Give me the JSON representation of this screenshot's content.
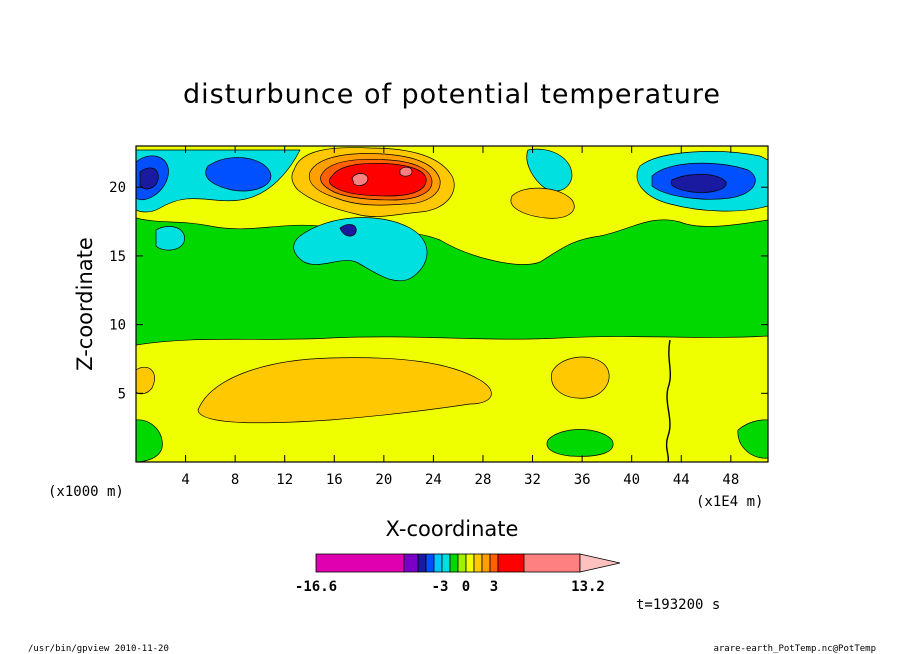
{
  "chart_data": {
    "type": "heatmap",
    "title": "disturbunce of potential temperature",
    "xlabel": "X-coordinate",
    "ylabel": "Z-coordinate",
    "x_unit": "(x1E4 m)",
    "y_unit": "(x1000 m)",
    "x_ticks": [
      "4",
      "8",
      "12",
      "16",
      "20",
      "24",
      "28",
      "32",
      "36",
      "40",
      "44",
      "48"
    ],
    "y_ticks": [
      "5",
      "10",
      "15",
      "20"
    ],
    "xlim": [
      0,
      51
    ],
    "ylim": [
      0,
      23
    ],
    "colorbar": {
      "labels": [
        "-16.6",
        "-3",
        "0",
        "3",
        "13.2"
      ],
      "min": -16.6,
      "max": 13.2,
      "colors": [
        "#e000b0",
        "#7a00c8",
        "#1a1aa0",
        "#0050ff",
        "#00c8ff",
        "#00e0e0",
        "#00d800",
        "#a0f000",
        "#f0ff00",
        "#ffc800",
        "#ffa000",
        "#ff6000",
        "#ff0000",
        "#ff8080",
        "#ffc0c0"
      ]
    },
    "regions": [
      {
        "level": 1,
        "label": "yellow band",
        "x": [
          0,
          51
        ],
        "y": [
          0,
          9
        ]
      },
      {
        "level": 0,
        "label": "green band",
        "x": [
          0,
          51
        ],
        "y": [
          9,
          17
        ]
      },
      {
        "level": 2,
        "label": "warm core",
        "x": [
          16,
          24
        ],
        "y": [
          18,
          22
        ]
      },
      {
        "level": -2,
        "label": "cold core",
        "x": [
          40,
          50
        ],
        "y": [
          18,
          22
        ]
      }
    ],
    "time_label": "t=193200 s"
  },
  "footer": {
    "left": "/usr/bin/gpview   2010-11-20",
    "right": "arare-earth_PotTemp.nc@PotTemp"
  }
}
